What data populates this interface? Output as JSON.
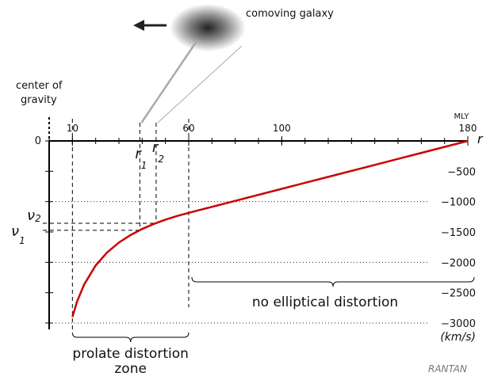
{
  "chart_data": {
    "type": "line",
    "x_label": "r",
    "x_unit": "MLY",
    "y_unit": "(km/s)",
    "x": [
      10,
      12,
      15,
      20,
      25,
      30,
      35,
      40,
      45,
      50,
      55,
      60,
      80,
      100,
      120,
      140,
      160,
      180
    ],
    "series": [
      {
        "color": "#cc0000",
        "values": [
          -2900,
          -2647,
          -2368,
          -2051,
          -1834,
          -1674,
          -1550,
          -1450,
          -1367,
          -1297,
          -1237,
          -1184,
          -987,
          -789,
          -592,
          -395,
          -197,
          0
        ]
      }
    ],
    "xlim": [
      0,
      180
    ],
    "ylim": [
      -3000,
      0
    ],
    "xticks": [
      10,
      60,
      100,
      180
    ],
    "xminor": [
      0,
      10,
      20,
      30,
      40,
      50,
      60,
      70,
      80,
      90,
      100,
      110,
      120,
      130,
      140,
      150,
      160,
      170,
      180
    ],
    "yticks": [
      0,
      {
        "value": -500,
        "label": "−500"
      },
      {
        "value": -1000,
        "label": "−1000"
      },
      {
        "value": -1500,
        "label": "−1500"
      },
      {
        "value": -2000,
        "label": "−2000"
      },
      {
        "value": -2500,
        "label": "−2500"
      },
      {
        "value": -3000,
        "label": "−3000"
      }
    ],
    "grid_y": [
      -1000,
      -2000,
      -3000
    ],
    "markers": [
      {
        "label": "r",
        "sub": "1",
        "r": 39,
        "vlabel": "ν",
        "vsub": "1",
        "v": -1473
      },
      {
        "label": "r",
        "sub": "2",
        "r": 46,
        "vlabel": "ν",
        "vsub": "2",
        "v": -1356
      }
    ],
    "zones": [
      {
        "from": 10,
        "to": 60,
        "label": [
          "prolate distortion",
          "zone"
        ]
      },
      {
        "from": 60,
        "to": 180,
        "label": [
          "no elliptical distortion"
        ]
      }
    ],
    "center_label": [
      "center of",
      "gravity"
    ],
    "galaxy_label": "comoving galaxy",
    "logo": "RANTAN"
  }
}
